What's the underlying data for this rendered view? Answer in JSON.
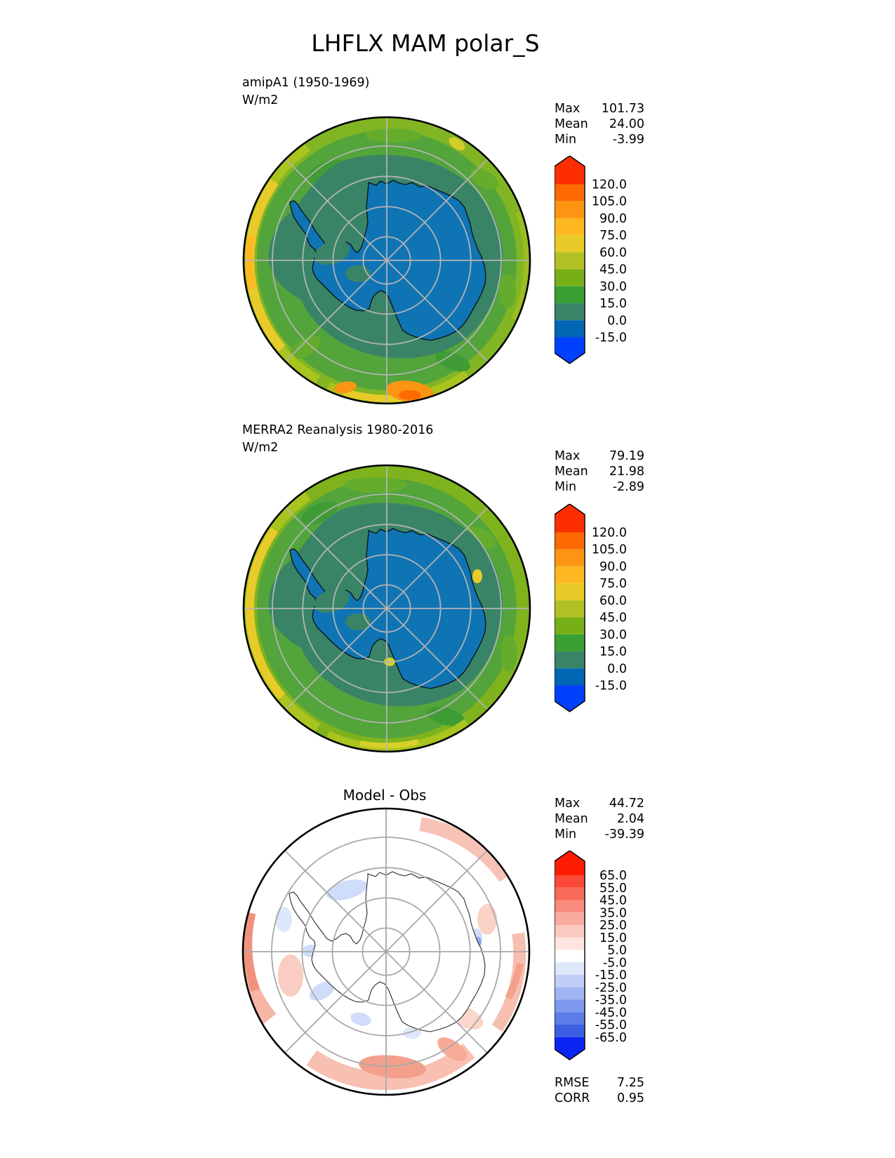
{
  "figure_title": "LHFLX MAM polar_S",
  "panels": {
    "model": {
      "label": "amipA1 (1950-1969)",
      "units": "W/m2",
      "stats": [
        {
          "label": "Max",
          "value": "101.73"
        },
        {
          "label": "Mean",
          "value": "24.00"
        },
        {
          "label": "Min",
          "value": "-3.99"
        }
      ],
      "colorbar": {
        "ticks": [
          "120.0",
          "105.0",
          "90.0",
          "75.0",
          "60.0",
          "45.0",
          "30.0",
          "15.0",
          "0.0",
          "-15.0"
        ],
        "colors": [
          "#fd2e01",
          "#fc6a01",
          "#fc9511",
          "#fdb822",
          "#e8cb2a",
          "#b1c123",
          "#77b016",
          "#3aa033",
          "#398467",
          "#0166b3",
          "#0241fb"
        ]
      }
    },
    "obs": {
      "label": "MERRA2 Reanalysis 1980-2016",
      "units": "W/m2",
      "stats": [
        {
          "label": "Max",
          "value": "79.19"
        },
        {
          "label": "Mean",
          "value": "21.98"
        },
        {
          "label": "Min",
          "value": "-2.89"
        }
      ],
      "colorbar": {
        "ticks": [
          "120.0",
          "105.0",
          "90.0",
          "75.0",
          "60.0",
          "45.0",
          "30.0",
          "15.0",
          "0.0",
          "-15.0"
        ],
        "colors": [
          "#fd2e01",
          "#fc6a01",
          "#fc9511",
          "#fdb822",
          "#e8cb2a",
          "#b1c123",
          "#77b016",
          "#3aa033",
          "#398467",
          "#0166b3",
          "#0241fb"
        ]
      }
    },
    "diff": {
      "title": "Model - Obs",
      "stats": [
        {
          "label": "Max",
          "value": "44.72"
        },
        {
          "label": "Mean",
          "value": "2.04"
        },
        {
          "label": "Min",
          "value": "-39.39"
        }
      ],
      "colorbar": {
        "ticks": [
          "65.0",
          "55.0",
          "45.0",
          "35.0",
          "25.0",
          "15.0",
          "5.0",
          "-5.0",
          "-15.0",
          "-25.0",
          "-35.0",
          "-45.0",
          "-55.0",
          "-65.0"
        ],
        "colors": [
          "#fe1b01",
          "#fc4836",
          "#fa6b5b",
          "#f98b7d",
          "#faaba0",
          "#fcc9c0",
          "#fee5e0",
          "#ffffff",
          "#dfe7fb",
          "#c0cef8",
          "#a0b5f4",
          "#7f99f0",
          "#5c7cea",
          "#3c5ee2",
          "#0b24f2"
        ]
      },
      "metrics": [
        {
          "label": "RMSE",
          "value": "7.25"
        },
        {
          "label": "CORR",
          "value": "0.95"
        }
      ]
    }
  },
  "chart_data": [
    {
      "type": "heatmap",
      "panel": "model",
      "title": "amipA1 (1950-1969)",
      "units": "W/m2",
      "projection": "south polar stereographic (Antarctica centered)",
      "variable": "LHFLX",
      "season": "MAM",
      "stats": {
        "max": 101.73,
        "mean": 24.0,
        "min": -3.99
      },
      "contour_levels": [
        -15,
        0,
        15,
        30,
        45,
        60,
        75,
        90,
        105,
        120
      ],
      "colorbar_colors_top_to_bottom": [
        "#fd2e01",
        "#fc6a01",
        "#fc9511",
        "#fdb822",
        "#e8cb2a",
        "#b1c123",
        "#77b016",
        "#3aa033",
        "#398467",
        "#0166b3",
        "#0241fb"
      ],
      "extend": "both",
      "legend_position": "right"
    },
    {
      "type": "heatmap",
      "panel": "obs",
      "title": "MERRA2 Reanalysis 1980-2016",
      "units": "W/m2",
      "projection": "south polar stereographic (Antarctica centered)",
      "variable": "LHFLX",
      "season": "MAM",
      "stats": {
        "max": 79.19,
        "mean": 21.98,
        "min": -2.89
      },
      "contour_levels": [
        -15,
        0,
        15,
        30,
        45,
        60,
        75,
        90,
        105,
        120
      ],
      "colorbar_colors_top_to_bottom": [
        "#fd2e01",
        "#fc6a01",
        "#fc9511",
        "#fdb822",
        "#e8cb2a",
        "#b1c123",
        "#77b016",
        "#3aa033",
        "#398467",
        "#0166b3",
        "#0241fb"
      ],
      "extend": "both",
      "legend_position": "right"
    },
    {
      "type": "heatmap",
      "panel": "difference",
      "title": "Model - Obs",
      "units": "W/m2",
      "projection": "south polar stereographic (Antarctica centered)",
      "stats": {
        "max": 44.72,
        "mean": 2.04,
        "min": -39.39,
        "rmse": 7.25,
        "corr": 0.95
      },
      "contour_levels": [
        -65,
        -55,
        -45,
        -35,
        -25,
        -15,
        -5,
        5,
        15,
        25,
        35,
        45,
        55,
        65
      ],
      "colorbar_colors_top_to_bottom": [
        "#fe1b01",
        "#fc4836",
        "#fa6b5b",
        "#f98b7d",
        "#faaba0",
        "#fcc9c0",
        "#fee5e0",
        "#ffffff",
        "#dfe7fb",
        "#c0cef8",
        "#a0b5f4",
        "#7f99f0",
        "#5c7cea",
        "#3c5ee2",
        "#0b24f2"
      ],
      "extend": "both",
      "legend_position": "right"
    }
  ]
}
